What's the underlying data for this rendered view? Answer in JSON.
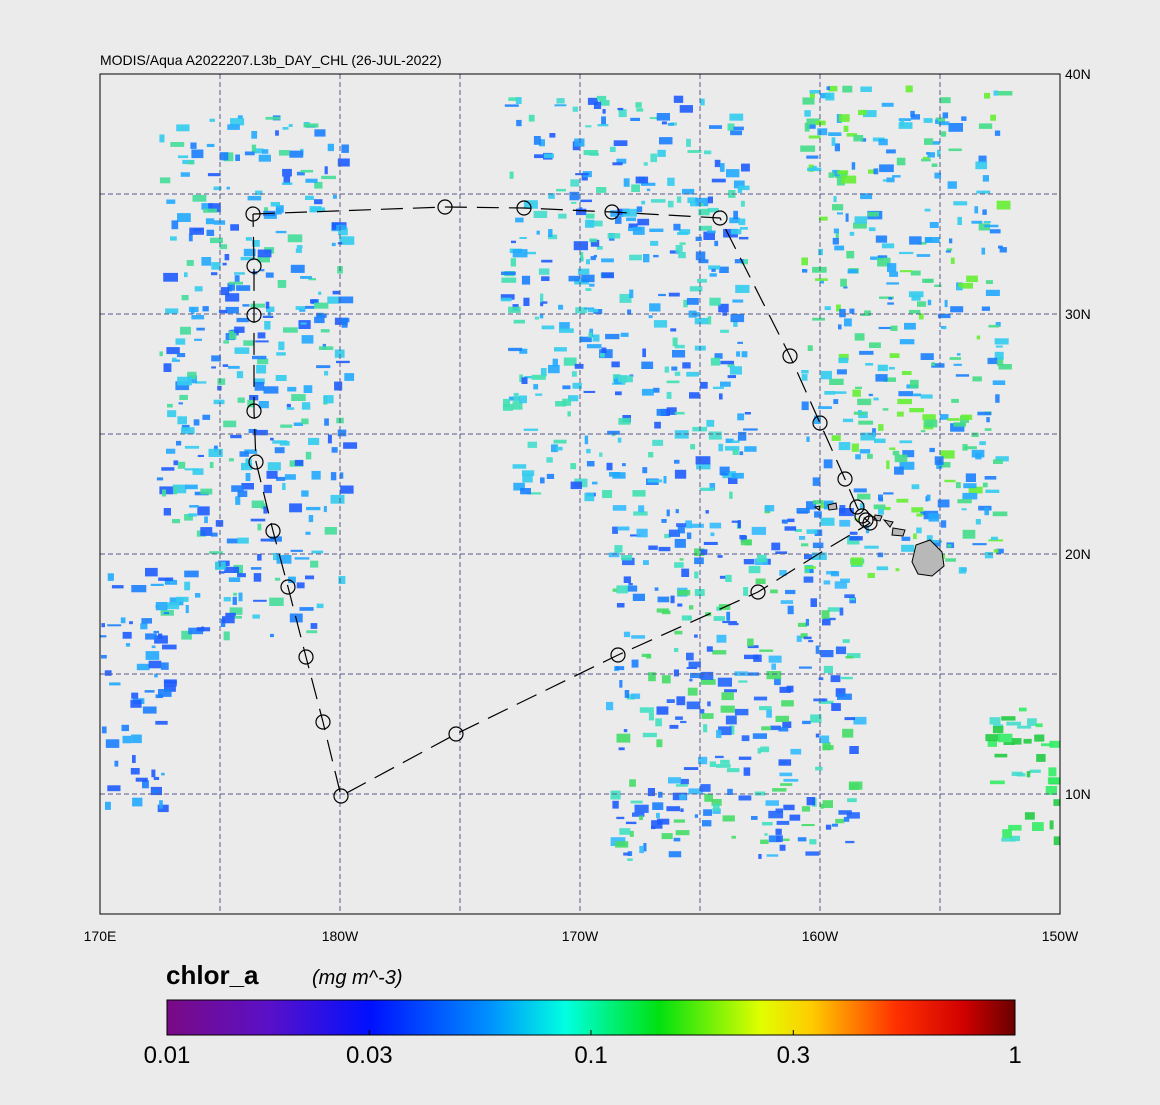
{
  "map": {
    "title": "MODIS/Aqua A2022207.L3b_DAY_CHL (26-JUL-2022)",
    "xlim": [
      170,
      210
    ],
    "ylim": [
      5,
      40
    ],
    "xticks": [
      {
        "value": 170,
        "label": "170E"
      },
      {
        "value": 180,
        "label": "180W"
      },
      {
        "value": 190,
        "label": "170W"
      },
      {
        "value": 200,
        "label": "160W"
      },
      {
        "value": 210,
        "label": "150W"
      }
    ],
    "yticks": [
      {
        "value": 40,
        "label": "40N"
      },
      {
        "value": 30,
        "label": "30N"
      },
      {
        "value": 20,
        "label": "20N"
      },
      {
        "value": 10,
        "label": "10N"
      }
    ],
    "colorbar": {
      "label": "chlor_a",
      "units": "(mg m^-3)",
      "log_scale": true,
      "lim": [
        0.01,
        1
      ],
      "ticks": [
        0.01,
        0.03,
        0.1,
        0.3,
        1
      ]
    }
  }
}
